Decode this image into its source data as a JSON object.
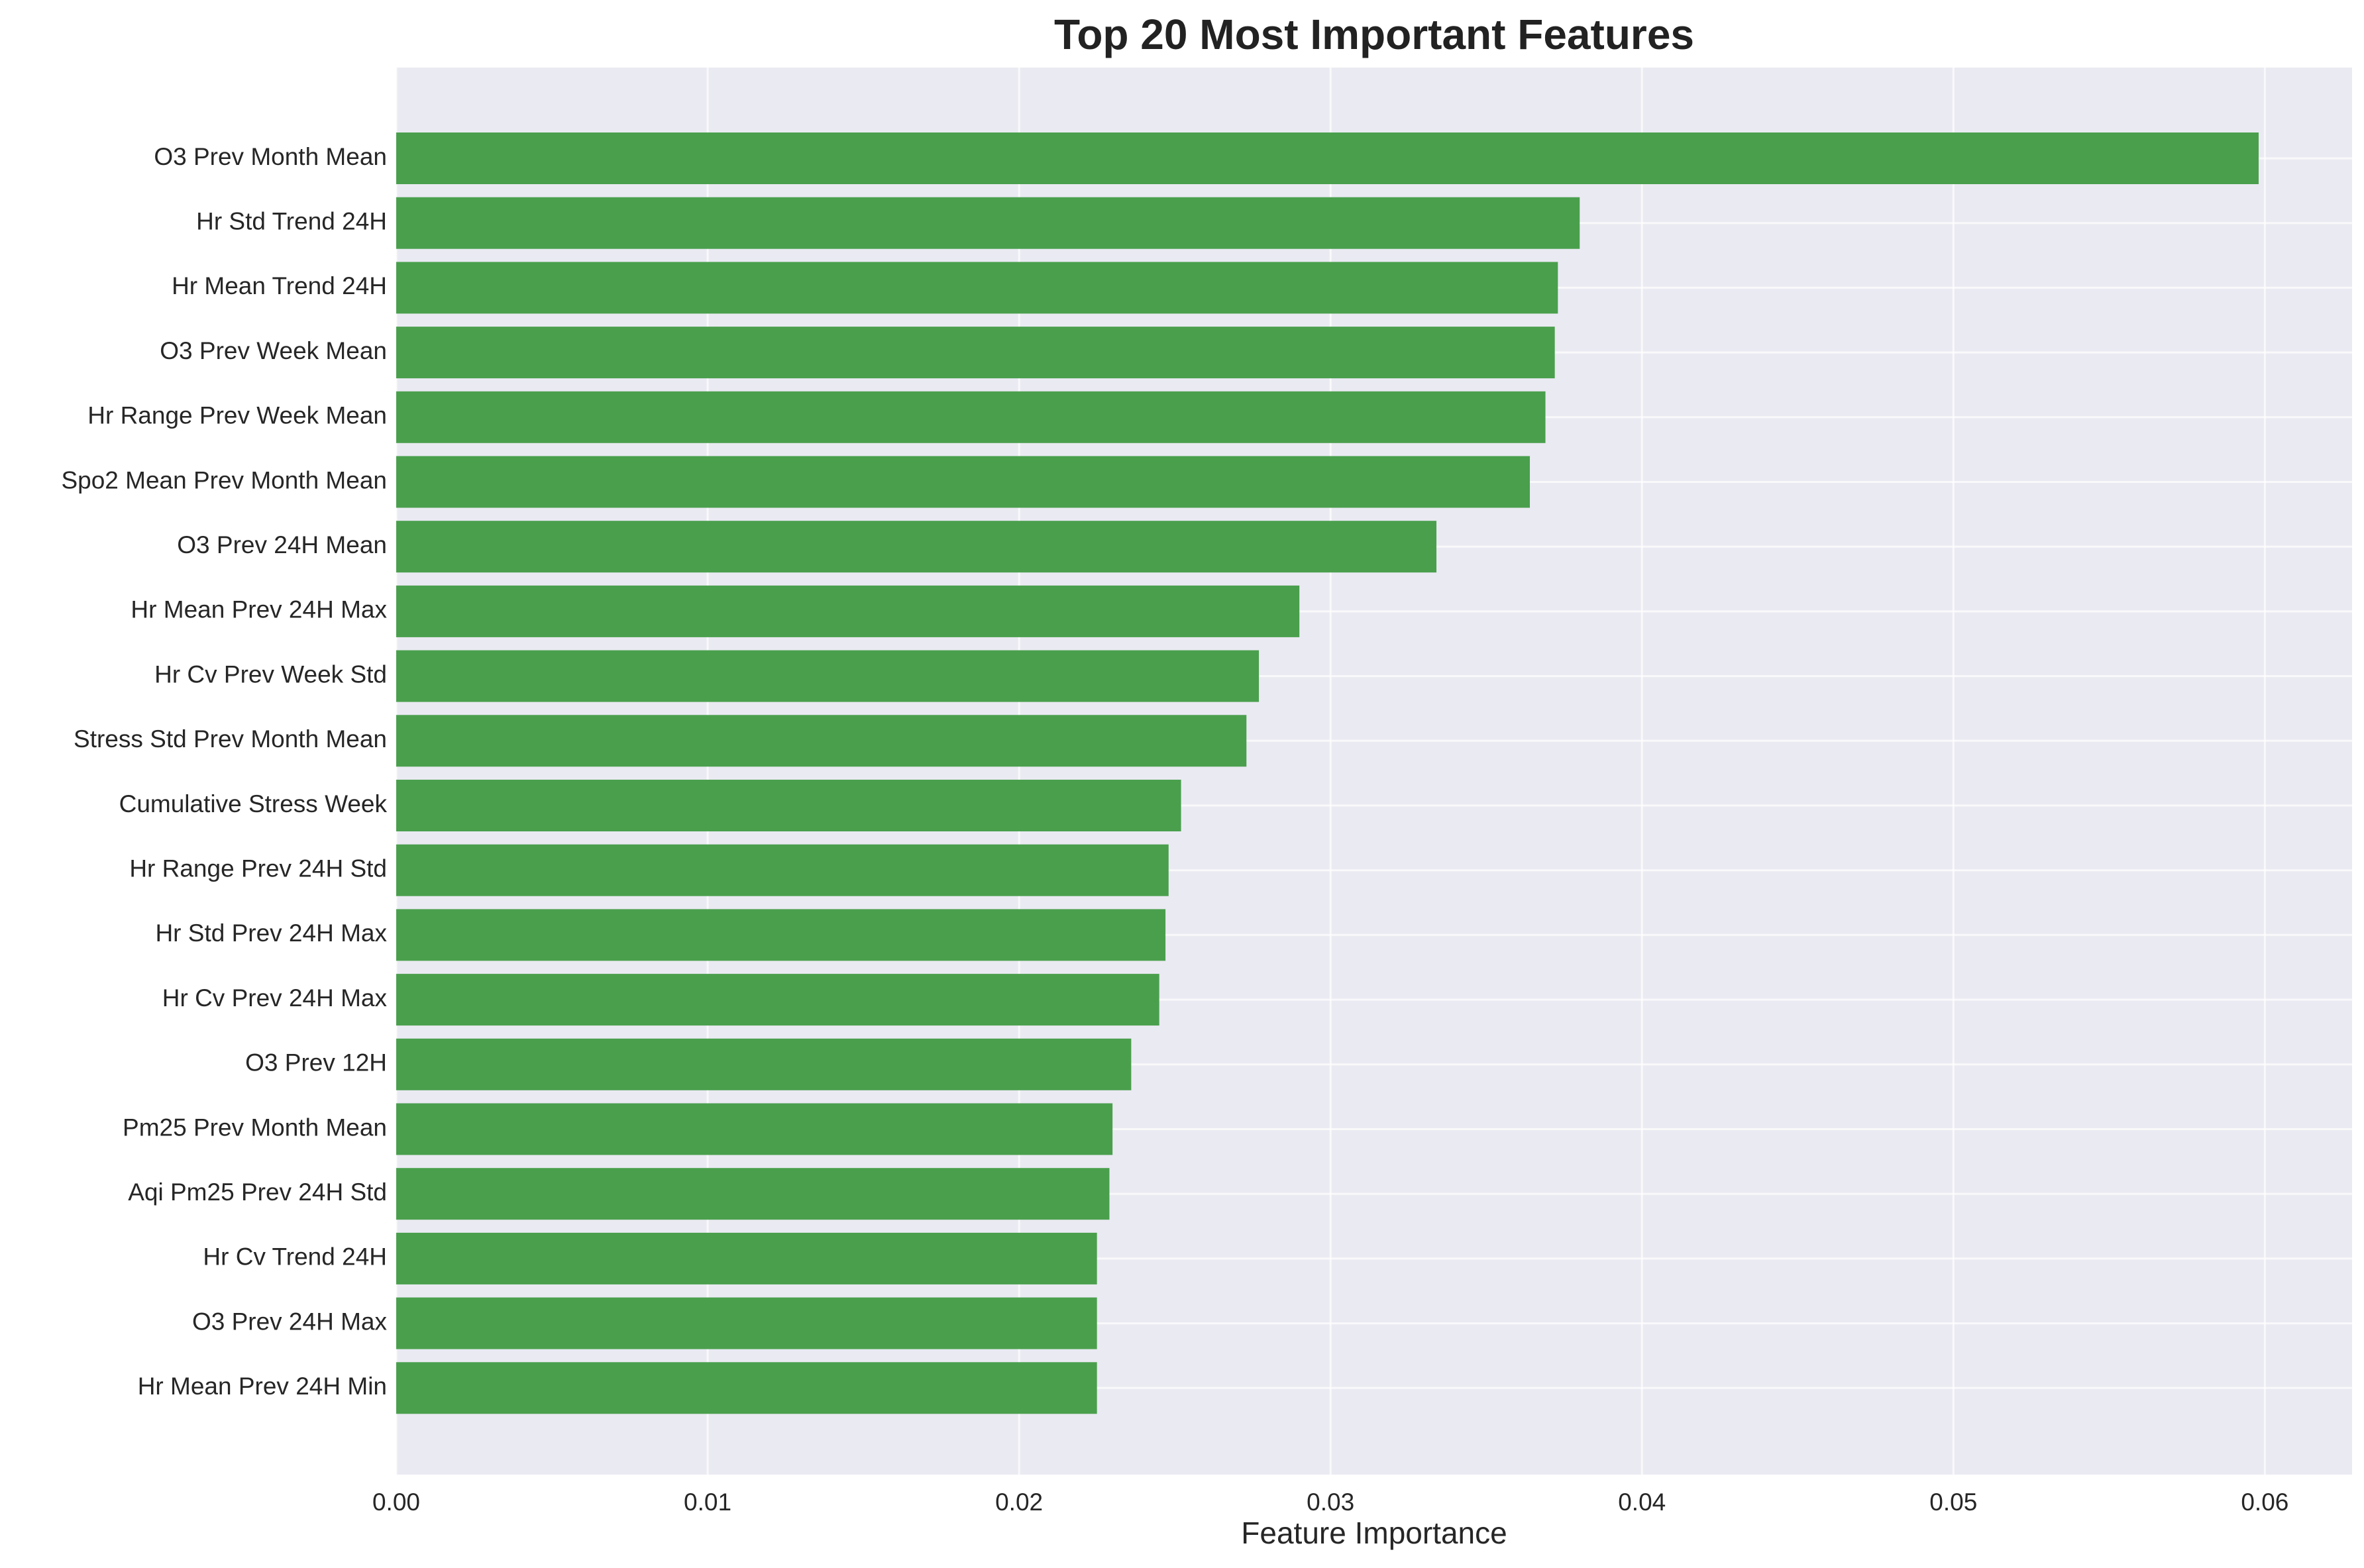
{
  "colors": {
    "plot_background": "#eaeaf2",
    "bar": "#4a9f4d",
    "grid": "#ffffff",
    "text": "#262626"
  },
  "chart_data": {
    "type": "bar",
    "orientation": "horizontal",
    "title": "Top 20 Most Important Features",
    "xlabel": "Feature Importance",
    "ylabel": "",
    "xlim": [
      0,
      0.0628
    ],
    "xticks": [
      0.0,
      0.01,
      0.02,
      0.03,
      0.04,
      0.05,
      0.06
    ],
    "xtick_labels": [
      "0.00",
      "0.01",
      "0.02",
      "0.03",
      "0.04",
      "0.05",
      "0.06"
    ],
    "grid": true,
    "legend": "none",
    "categories": [
      "O3 Prev Month Mean",
      "Hr Std Trend 24H",
      "Hr Mean Trend 24H",
      "O3 Prev Week Mean",
      "Hr Range Prev Week Mean",
      "Spo2 Mean Prev Month Mean",
      "O3 Prev 24H Mean",
      "Hr Mean Prev 24H Max",
      "Hr Cv Prev Week Std",
      "Stress Std Prev Month Mean",
      "Cumulative Stress Week",
      "Hr Range Prev 24H Std",
      "Hr Std Prev 24H Max",
      "Hr Cv Prev 24H Max",
      "O3 Prev 12H",
      "Pm25 Prev Month Mean",
      "Aqi Pm25 Prev 24H Std",
      "Hr Cv Trend 24H",
      "O3 Prev 24H Max",
      "Hr Mean Prev 24H Min"
    ],
    "values": [
      0.0598,
      0.038,
      0.0373,
      0.0372,
      0.0369,
      0.0364,
      0.0334,
      0.029,
      0.0277,
      0.0273,
      0.0252,
      0.0248,
      0.0247,
      0.0245,
      0.0236,
      0.023,
      0.0229,
      0.0225,
      0.0225,
      0.0225
    ]
  }
}
